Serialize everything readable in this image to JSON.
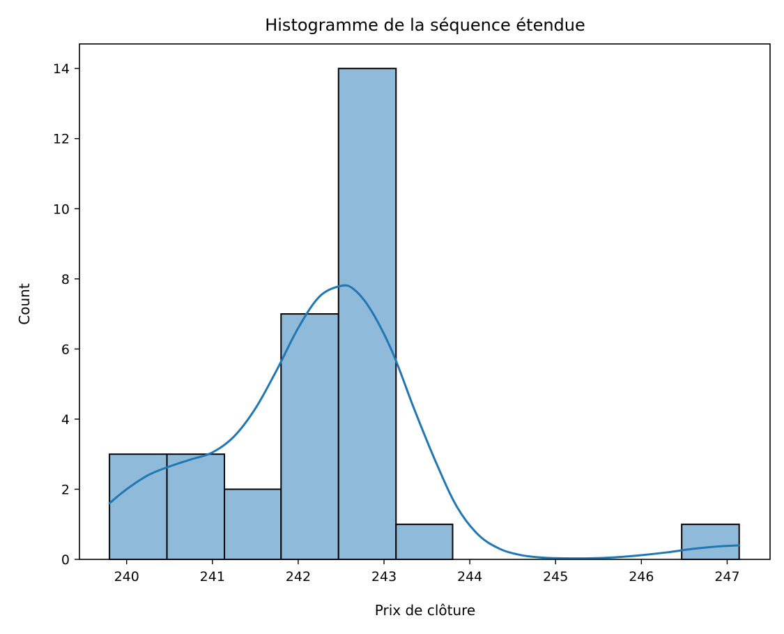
{
  "chart_data": {
    "type": "bar",
    "subtype": "histogram",
    "title": "Histogramme de la séquence étendue",
    "xlabel": "Prix de clôture",
    "ylabel": "Count",
    "xlim": [
      239.45,
      247.5
    ],
    "ylim": [
      0,
      14.7
    ],
    "xticks": [
      240,
      241,
      242,
      243,
      244,
      245,
      246,
      247
    ],
    "yticks": [
      0,
      2,
      4,
      6,
      8,
      10,
      12,
      14
    ],
    "grid": false,
    "bins": [
      {
        "x0": 239.8,
        "x1": 240.47,
        "count": 3
      },
      {
        "x0": 240.47,
        "x1": 241.14,
        "count": 3
      },
      {
        "x0": 241.14,
        "x1": 241.8,
        "count": 2
      },
      {
        "x0": 241.8,
        "x1": 242.47,
        "count": 7
      },
      {
        "x0": 242.47,
        "x1": 243.14,
        "count": 14
      },
      {
        "x0": 243.14,
        "x1": 243.8,
        "count": 1
      },
      {
        "x0": 243.8,
        "x1": 244.47,
        "count": 0
      },
      {
        "x0": 244.47,
        "x1": 245.14,
        "count": 0
      },
      {
        "x0": 245.14,
        "x1": 245.8,
        "count": 0
      },
      {
        "x0": 245.8,
        "x1": 246.47,
        "count": 0
      },
      {
        "x0": 246.47,
        "x1": 247.14,
        "count": 1
      }
    ],
    "kde": {
      "x": [
        239.8,
        240.0,
        240.25,
        240.5,
        240.75,
        241.0,
        241.25,
        241.5,
        241.75,
        242.0,
        242.25,
        242.5,
        242.65,
        242.85,
        243.1,
        243.35,
        243.6,
        243.85,
        244.1,
        244.35,
        244.6,
        244.85,
        245.1,
        245.4,
        245.7,
        246.0,
        246.3,
        246.6,
        246.9,
        247.14
      ],
      "y": [
        1.6,
        2.0,
        2.4,
        2.65,
        2.85,
        3.05,
        3.5,
        4.3,
        5.4,
        6.6,
        7.5,
        7.8,
        7.7,
        7.1,
        5.9,
        4.3,
        2.8,
        1.5,
        0.7,
        0.3,
        0.12,
        0.05,
        0.03,
        0.03,
        0.06,
        0.12,
        0.2,
        0.3,
        0.37,
        0.4
      ]
    },
    "colors": {
      "bar_fill": "#8fbad9",
      "bar_edge": "#000000",
      "kde_line": "#1f77b4"
    }
  }
}
